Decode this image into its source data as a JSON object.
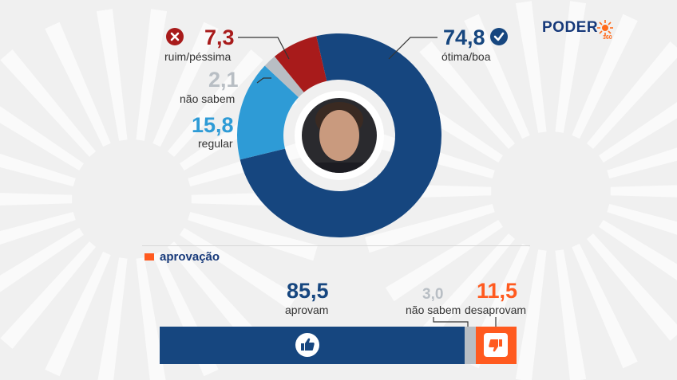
{
  "logo": {
    "text": "PODER",
    "sub": "360"
  },
  "chart_data": [
    {
      "type": "pie",
      "categories": [
        "ótima/boa",
        "regular",
        "não sabem",
        "ruim/péssima"
      ],
      "values": [
        74.8,
        15.8,
        2.1,
        7.3
      ],
      "value_labels": [
        "74,8",
        "15,8",
        "2,1",
        "7,3"
      ],
      "colors": [
        "#16467f",
        "#2e9bd6",
        "#b8bec4",
        "#a81b1b"
      ]
    },
    {
      "type": "bar",
      "title": "aprovação",
      "categories": [
        "aprovam",
        "não sabem",
        "desaprovam"
      ],
      "values": [
        85.5,
        3.0,
        11.5
      ],
      "value_labels": [
        "85,5",
        "3,0",
        "11,5"
      ],
      "colors": [
        "#16467f",
        "#b8bec4",
        "#ff5a1f"
      ]
    }
  ],
  "colors": {
    "background": "#f0f0f0",
    "accent": "#ff5a1f",
    "navy": "#16467f",
    "brand": "#16397a"
  },
  "icons": [
    "x-circle-icon",
    "check-circle-icon",
    "thumbs-up-icon",
    "thumbs-down-icon"
  ]
}
